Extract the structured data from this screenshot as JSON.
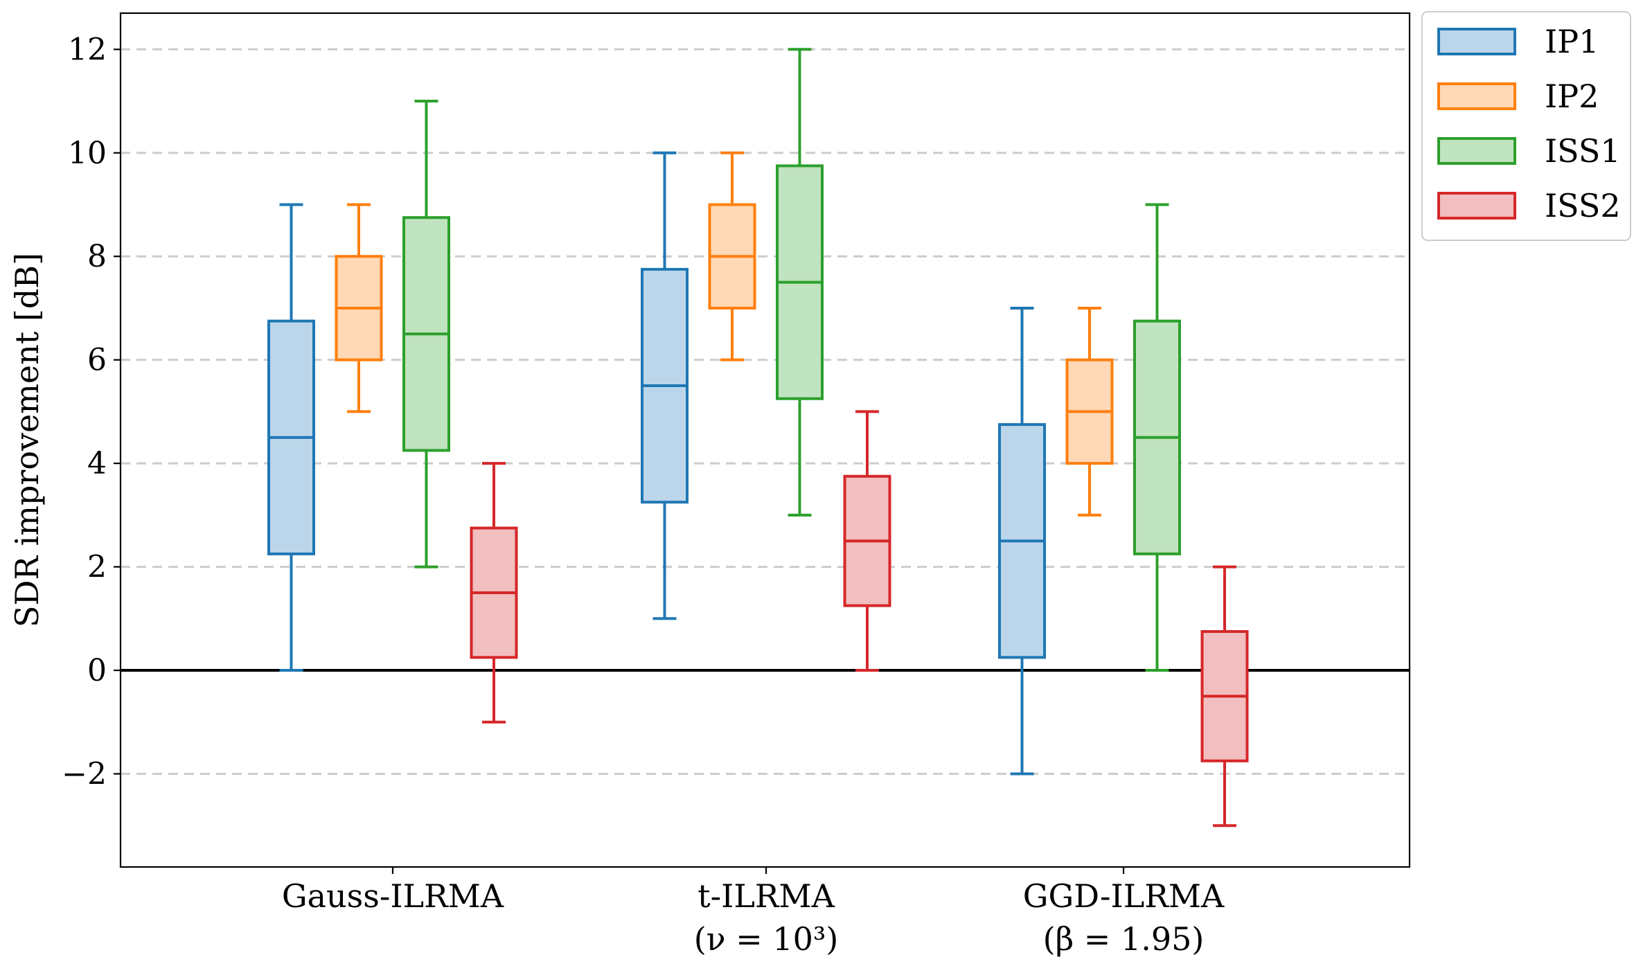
{
  "chart_data": {
    "type": "box",
    "ylabel": "SDR improvement [dB]",
    "ylim": [
      -3.8,
      12.7
    ],
    "yticks": [
      {
        "value": -2,
        "label": "−2"
      },
      {
        "value": 0,
        "label": "0"
      },
      {
        "value": 2,
        "label": "2"
      },
      {
        "value": 4,
        "label": "4"
      },
      {
        "value": 6,
        "label": "6"
      },
      {
        "value": 8,
        "label": "8"
      },
      {
        "value": 10,
        "label": "10"
      },
      {
        "value": 12,
        "label": "12"
      }
    ],
    "categories": [
      {
        "line1": "Gauss-ILRMA",
        "line2": ""
      },
      {
        "line1": "t-ILRMA",
        "line2": "(ν = 10³)"
      },
      {
        "line1": "GGD-ILRMA",
        "line2": "(β = 1.95)"
      }
    ],
    "grid": "horizontal dashed",
    "reference_line_y": 0,
    "legend_position": "outside top-right",
    "series": [
      {
        "name": "IP1",
        "color": "#1f77b4",
        "fill": "#bbd6ea",
        "boxes": [
          {
            "whisker_low": 0,
            "q1": 2.25,
            "median": 4.5,
            "q3": 6.75,
            "whisker_high": 9
          },
          {
            "whisker_low": 1,
            "q1": 3.25,
            "median": 5.5,
            "q3": 7.75,
            "whisker_high": 10
          },
          {
            "whisker_low": -2,
            "q1": 0.25,
            "median": 2.5,
            "q3": 4.75,
            "whisker_high": 7
          }
        ]
      },
      {
        "name": "IP2",
        "color": "#ff7f0e",
        "fill": "#ffd8b5",
        "boxes": [
          {
            "whisker_low": 5,
            "q1": 6,
            "median": 7,
            "q3": 8,
            "whisker_high": 9
          },
          {
            "whisker_low": 6,
            "q1": 7,
            "median": 8,
            "q3": 9,
            "whisker_high": 10
          },
          {
            "whisker_low": 3,
            "q1": 4,
            "median": 5,
            "q3": 6,
            "whisker_high": 7
          }
        ]
      },
      {
        "name": "ISS1",
        "color": "#2ca02c",
        "fill": "#c0e3c0",
        "boxes": [
          {
            "whisker_low": 2,
            "q1": 4.25,
            "median": 6.5,
            "q3": 8.75,
            "whisker_high": 11
          },
          {
            "whisker_low": 3,
            "q1": 5.25,
            "median": 7.5,
            "q3": 9.75,
            "whisker_high": 12
          },
          {
            "whisker_low": 0,
            "q1": 2.25,
            "median": 4.5,
            "q3": 6.75,
            "whisker_high": 9
          }
        ]
      },
      {
        "name": "ISS2",
        "color": "#d62728",
        "fill": "#f2bebf",
        "boxes": [
          {
            "whisker_low": -1,
            "q1": 0.25,
            "median": 1.5,
            "q3": 2.75,
            "whisker_high": 4
          },
          {
            "whisker_low": 0,
            "q1": 1.25,
            "median": 2.5,
            "q3": 3.75,
            "whisker_high": 5
          },
          {
            "whisker_low": -3,
            "q1": -1.75,
            "median": -0.5,
            "q3": 0.75,
            "whisker_high": 2
          }
        ]
      }
    ]
  }
}
